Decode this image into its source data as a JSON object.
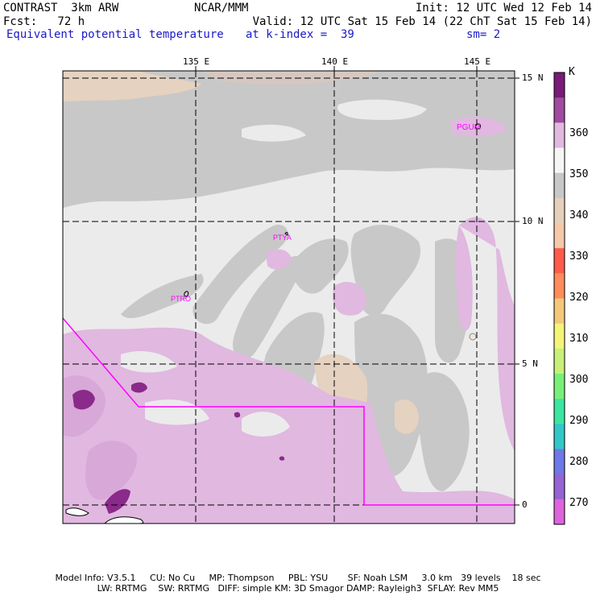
{
  "header": {
    "model": "CONTRAST  3km ARW",
    "center": "NCAR/MMM",
    "init": "Init: 12 UTC Wed 12 Feb 14",
    "fcst": "Fcst:   72 h",
    "valid": "Valid: 12 UTC Sat 15 Feb 14 (22 ChT Sat 15 Feb 14)",
    "field": "Equivalent potential temperature",
    "level": "at k-index =  39",
    "smooth": "sm= 2"
  },
  "map": {
    "lon_labels": [
      "135 E",
      "140 E",
      "145 E"
    ],
    "lat_labels": [
      "15 N",
      "10 N",
      "5 N",
      "0"
    ],
    "stations": [
      "PGUM",
      "PTYA",
      "PTRO"
    ],
    "colors": {
      "frame": "#000000",
      "boundary": "#ff00ff",
      "background": "#ebebeb"
    }
  },
  "colorbar": {
    "unit": "K",
    "labels": [
      "360",
      "350",
      "340",
      "330",
      "320",
      "310",
      "300",
      "290",
      "280",
      "270"
    ],
    "colors": [
      "#7a1a7a",
      "#a04aa0",
      "#e0b8e0",
      "#f5f5f5",
      "#c8c8c8",
      "#e6d0bc",
      "#f4c8a8",
      "#ff5a4a",
      "#ff8c5a",
      "#f4c878",
      "#f4f478",
      "#c8f078",
      "#78f078",
      "#3ce6a0",
      "#32c8c8",
      "#6e78e6",
      "#9664d2",
      "#dc64dc"
    ]
  },
  "footer": {
    "line1": "Model Info: V3.5.1     CU: No Cu     MP: Thompson     PBL: YSU       SF: Noah LSM     3.0 km   39 levels    18 sec",
    "line2": "LW: RRTMG    SW: RRTMG   DIFF: simple KM: 3D Smagor DAMP: Rayleigh3  SFLAY: Rev MM5"
  }
}
